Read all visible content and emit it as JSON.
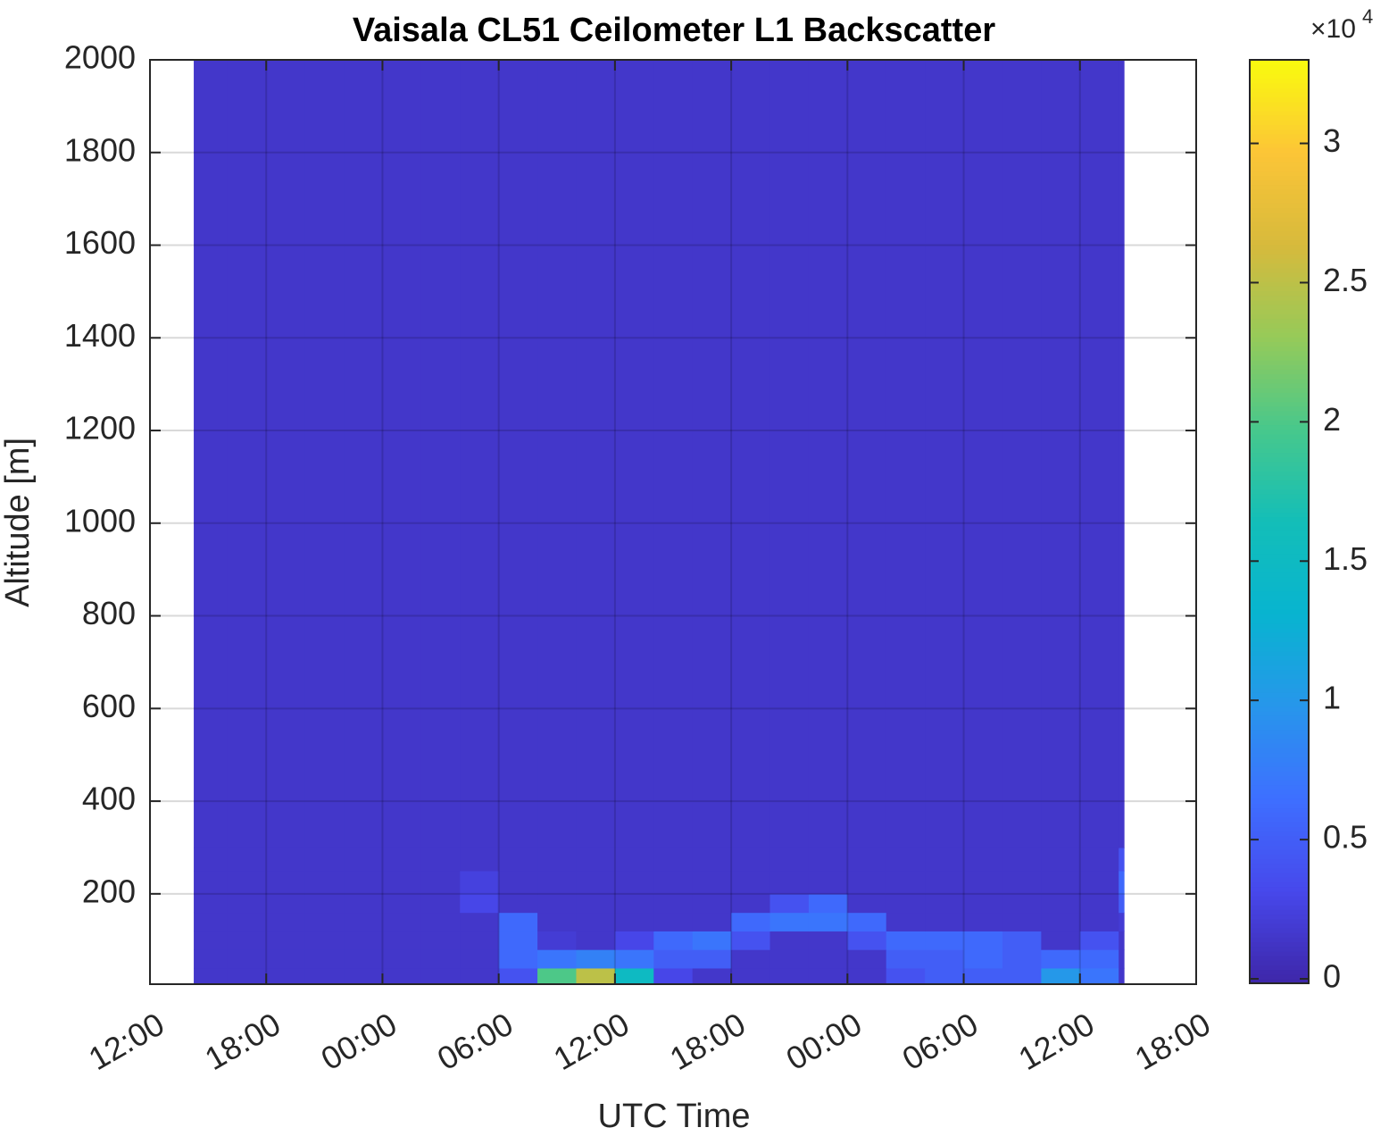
{
  "chart_data": {
    "type": "heatmap",
    "title": "Vaisala CL51 Ceilometer L1 Backscatter",
    "x_label": "UTC Time",
    "y_label": "Altitude [m]",
    "xlim": [
      0,
      54
    ],
    "xticks": [
      {
        "value": 0,
        "label": "12:00"
      },
      {
        "value": 6,
        "label": "18:00"
      },
      {
        "value": 12,
        "label": "00:00"
      },
      {
        "value": 18,
        "label": "06:00"
      },
      {
        "value": 24,
        "label": "12:00"
      },
      {
        "value": 30,
        "label": "18:00"
      },
      {
        "value": 36,
        "label": "00:00"
      },
      {
        "value": 42,
        "label": "06:00"
      },
      {
        "value": 48,
        "label": "12:00"
      },
      {
        "value": 54,
        "label": "18:00"
      }
    ],
    "ylim": [
      5,
      2000
    ],
    "yticks": [
      200,
      400,
      600,
      800,
      1000,
      1200,
      1400,
      1600,
      1800,
      2000
    ],
    "grid": true,
    "x_edges": [
      2.26,
      4,
      6,
      8,
      10,
      12,
      14,
      16,
      18,
      20,
      22,
      24,
      26,
      28,
      30,
      32,
      34,
      36,
      38,
      40,
      42,
      44,
      46,
      48,
      50,
      50.27
    ],
    "y_edges": [
      5,
      40,
      80,
      120,
      160,
      200,
      250,
      300,
      2000
    ],
    "values": [
      [
        1500,
        1500,
        1500,
        1500,
        1500,
        1500,
        1500,
        1500,
        4000,
        20000,
        25000,
        15000,
        3000,
        1500,
        1500,
        1500,
        1500,
        1500,
        4000,
        5000,
        5000,
        5000,
        10000,
        7000,
        1500
      ],
      [
        1500,
        1500,
        1500,
        1500,
        1500,
        1500,
        1500,
        1500,
        6000,
        7000,
        8000,
        7000,
        5000,
        5000,
        1500,
        1500,
        1500,
        1500,
        5000,
        5000,
        6000,
        5000,
        6000,
        6000,
        1500
      ],
      [
        1500,
        1500,
        1500,
        1500,
        1500,
        1500,
        1500,
        1500,
        6000,
        2000,
        1500,
        3000,
        6000,
        7000,
        4000,
        1500,
        1500,
        4000,
        6000,
        6000,
        6000,
        5000,
        1500,
        4000,
        1500
      ],
      [
        1500,
        1500,
        1500,
        1500,
        1500,
        1500,
        1500,
        1500,
        6000,
        1500,
        1500,
        1500,
        1500,
        1500,
        6000,
        7000,
        7000,
        6000,
        1500,
        1500,
        1500,
        1500,
        1500,
        1500,
        2000
      ],
      [
        1500,
        1500,
        1500,
        1500,
        1500,
        1500,
        1500,
        3000,
        1500,
        1500,
        1500,
        1500,
        1500,
        1500,
        1500,
        4000,
        6000,
        1500,
        1500,
        1500,
        1500,
        1500,
        1500,
        1500,
        5000
      ],
      [
        1500,
        1500,
        1500,
        1500,
        1500,
        1500,
        1500,
        2500,
        1500,
        1500,
        1500,
        1500,
        1500,
        1500,
        1500,
        1500,
        1500,
        1500,
        1500,
        1500,
        1500,
        1500,
        1500,
        1500,
        6000
      ],
      [
        1500,
        1500,
        1500,
        1500,
        1500,
        1500,
        1500,
        1500,
        1500,
        1500,
        1500,
        1500,
        1500,
        1500,
        1500,
        1500,
        1500,
        1500,
        1500,
        1500,
        1500,
        1500,
        1500,
        1500,
        4000
      ],
      [
        1500,
        1500,
        1500,
        1500,
        1500,
        1500,
        1500,
        1500,
        1500,
        1500,
        1500,
        1500,
        1500,
        1500,
        1500,
        1500,
        1500,
        1500,
        1500,
        1500,
        1500,
        1500,
        1500,
        1500,
        1500
      ]
    ],
    "colorbar": {
      "clim": [
        -160,
        33000
      ],
      "ticks": [
        {
          "value": 0,
          "label": "0"
        },
        {
          "value": 5000,
          "label": "0.5"
        },
        {
          "value": 10000,
          "label": "1"
        },
        {
          "value": 15000,
          "label": "1.5"
        },
        {
          "value": 20000,
          "label": "2"
        },
        {
          "value": 25000,
          "label": "2.5"
        },
        {
          "value": 30000,
          "label": "3"
        }
      ],
      "multiplier_label": "×10",
      "multiplier_power": "4",
      "colormap": [
        "#3e26a8",
        "#4748eb",
        "#3e6fff",
        "#2796eb",
        "#08b4d0",
        "#13beb8",
        "#47c88c",
        "#96ca59",
        "#d7ba3c",
        "#fcc537",
        "#f9fb0e"
      ]
    }
  }
}
